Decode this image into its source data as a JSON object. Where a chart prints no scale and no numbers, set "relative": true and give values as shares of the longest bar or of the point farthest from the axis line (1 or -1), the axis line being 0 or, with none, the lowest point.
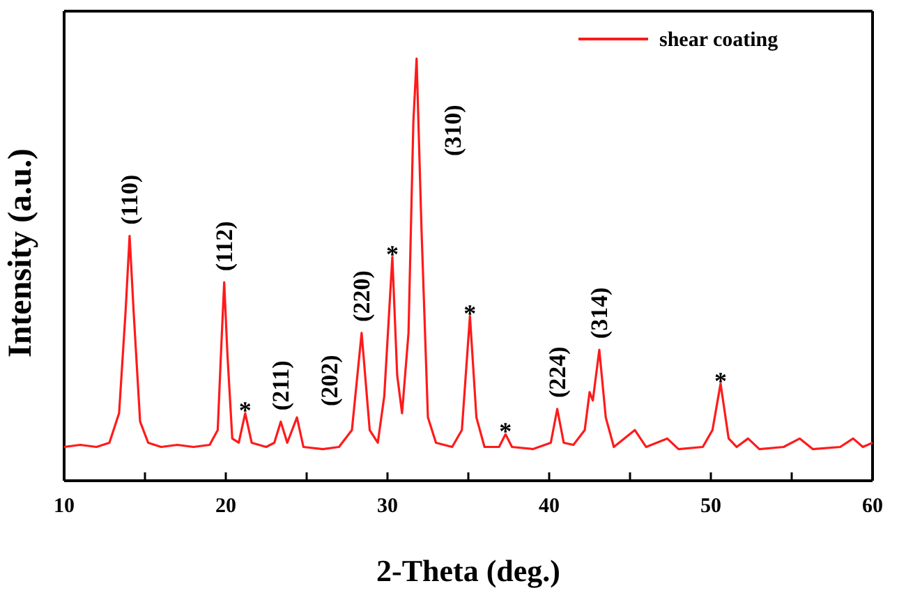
{
  "chart_data": {
    "type": "line",
    "relative": true,
    "xlabel": "2-Theta (deg.)",
    "ylabel": "Intensity (a.u.)",
    "xlim": [
      10,
      60
    ],
    "xticks": [
      10,
      {
        "value": 15,
        "label": null
      },
      20,
      {
        "value": 25,
        "label": null
      },
      30,
      {
        "value": 35,
        "label": null
      },
      40,
      {
        "value": 45,
        "label": null
      },
      50,
      {
        "value": 55,
        "label": null
      },
      60
    ],
    "legend": "top right",
    "marker": "none",
    "line_style": "solid",
    "grid": false,
    "series": [
      {
        "name": "shear coating",
        "color": "#ff1a1a",
        "x": [
          10,
          11,
          12,
          12.8,
          13.4,
          13.8,
          14.05,
          14.3,
          14.7,
          15.2,
          16,
          17,
          18,
          19,
          19.5,
          19.7,
          19.9,
          20.1,
          20.4,
          20.8,
          21.2,
          21.6,
          22.5,
          23.0,
          23.4,
          23.8,
          24.4,
          24.8,
          26,
          27,
          27.8,
          28.4,
          28.9,
          29.4,
          29.8,
          30.3,
          30.6,
          30.9,
          31.3,
          31.6,
          31.8,
          32.1,
          32.5,
          33,
          34,
          34.6,
          35.1,
          35.5,
          36,
          36.9,
          37.3,
          37.7,
          39,
          40.1,
          40.5,
          40.9,
          41.5,
          42.2,
          42.5,
          42.7,
          43.1,
          43.5,
          44,
          45.3,
          46,
          47.3,
          48,
          49.5,
          50.1,
          50.6,
          51.1,
          51.6,
          52.3,
          53,
          54.5,
          55.5,
          56.3,
          58,
          58.8,
          59.4,
          60
        ],
        "values": [
          0.08,
          0.085,
          0.08,
          0.09,
          0.16,
          0.4,
          0.58,
          0.4,
          0.14,
          0.09,
          0.08,
          0.085,
          0.08,
          0.085,
          0.12,
          0.3,
          0.47,
          0.3,
          0.1,
          0.09,
          0.16,
          0.09,
          0.08,
          0.09,
          0.14,
          0.09,
          0.15,
          0.08,
          0.075,
          0.08,
          0.12,
          0.35,
          0.12,
          0.09,
          0.2,
          0.53,
          0.25,
          0.16,
          0.35,
          0.85,
          1.0,
          0.6,
          0.15,
          0.09,
          0.08,
          0.12,
          0.39,
          0.15,
          0.08,
          0.08,
          0.11,
          0.08,
          0.075,
          0.09,
          0.17,
          0.09,
          0.085,
          0.12,
          0.21,
          0.19,
          0.31,
          0.15,
          0.08,
          0.12,
          0.08,
          0.1,
          0.075,
          0.08,
          0.12,
          0.23,
          0.1,
          0.08,
          0.1,
          0.075,
          0.08,
          0.1,
          0.075,
          0.08,
          0.1,
          0.08,
          0.09
        ]
      }
    ],
    "annotations": [
      {
        "text": "(110)",
        "x": 14.05,
        "y": 0.58
      },
      {
        "text": "(112)",
        "x": 19.9,
        "y": 0.47
      },
      {
        "text": "*",
        "x": 21.2,
        "y": 0.16
      },
      {
        "text": "(211)",
        "x": 23.4,
        "y": 0.14
      },
      {
        "text": "(202)",
        "x": 24.4,
        "y": 0.15
      },
      {
        "text": "(220)",
        "x": 28.4,
        "y": 0.35
      },
      {
        "text": "*",
        "x": 30.3,
        "y": 0.53
      },
      {
        "text": "(310)",
        "x": 31.8,
        "y": 1.0
      },
      {
        "text": "*",
        "x": 35.1,
        "y": 0.39
      },
      {
        "text": "*",
        "x": 37.3,
        "y": 0.11
      },
      {
        "text": "(224)",
        "x": 40.5,
        "y": 0.17
      },
      {
        "text": "(314)",
        "x": 43.1,
        "y": 0.31
      },
      {
        "text": "*",
        "x": 50.6,
        "y": 0.23
      }
    ]
  }
}
